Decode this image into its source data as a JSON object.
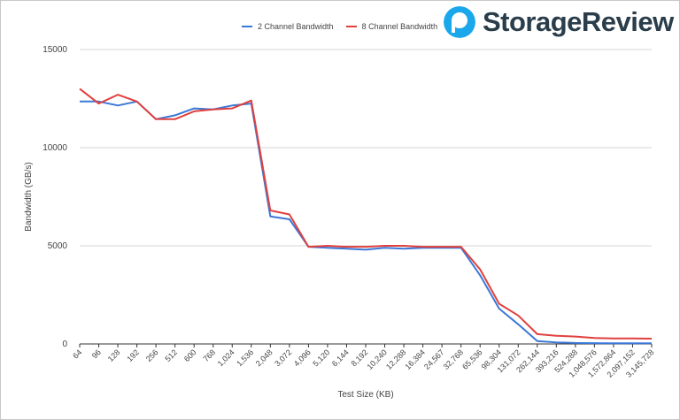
{
  "brand": {
    "text": "StorageReview",
    "color": "#2a3d4a",
    "mark_color": "#1aa7ec"
  },
  "chart_data": {
    "type": "line",
    "xlabel": "Test Size (KB)",
    "ylabel": "Bandwidth (GB/s)",
    "ylim": [
      0,
      15000
    ],
    "yticks": [
      0,
      5000,
      10000,
      15000
    ],
    "grid": true,
    "legend_position": "top",
    "categories": [
      "64",
      "96",
      "128",
      "192",
      "256",
      "512",
      "600",
      "768",
      "1,024",
      "1,536",
      "2,048",
      "3,072",
      "4,096",
      "5,120",
      "6,144",
      "8,192",
      "10,240",
      "12,288",
      "16,384",
      "24,567",
      "32,768",
      "65,536",
      "98,304",
      "131,072",
      "262,144",
      "393,216",
      "524,288",
      "1,048,576",
      "1,572,864",
      "2,097,152",
      "3,145,728"
    ],
    "series": [
      {
        "name": "2 Channel Bandwidth",
        "color": "#3c78d8",
        "values": [
          12350,
          12350,
          12150,
          12350,
          11450,
          11650,
          12000,
          11950,
          12150,
          12250,
          6500,
          6350,
          4950,
          4900,
          4850,
          4800,
          4900,
          4850,
          4900,
          4900,
          4900,
          3500,
          1800,
          1000,
          150,
          80,
          50,
          40,
          30,
          30,
          30
        ]
      },
      {
        "name": "8 Channel Bandwidth",
        "color": "#e0403e",
        "values": [
          13000,
          12250,
          12700,
          12350,
          11450,
          11450,
          11850,
          11950,
          12000,
          12400,
          6800,
          6600,
          4950,
          5000,
          4950,
          4950,
          5000,
          5000,
          4950,
          4950,
          4950,
          3800,
          2050,
          1450,
          500,
          420,
          380,
          300,
          280,
          280,
          270
        ]
      }
    ]
  }
}
